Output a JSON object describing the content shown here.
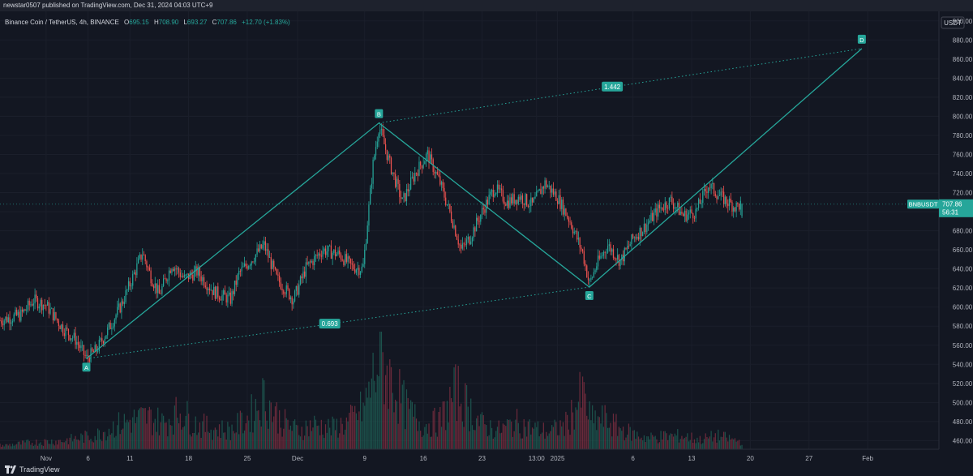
{
  "header": {
    "published": "newstar0507 published on TradingView.com, Dec 31, 2024 04:03 UTC+9"
  },
  "footer": {
    "brand": "TradingView"
  },
  "colors": {
    "background": "#131722",
    "up": "#26a69a",
    "down": "#ef5350",
    "pattern": "#26a69a",
    "axis_text": "#b2b5be",
    "grid": "#1e222d"
  },
  "chart_data": {
    "type": "candlestick",
    "symbol_line": {
      "name": "Binance Coin / TetherUS, 4h, BINANCE",
      "o_label": "O",
      "o": "695.15",
      "h_label": "H",
      "h": "708.90",
      "l_label": "L",
      "l": "693.27",
      "c_label": "C",
      "c": "707.86",
      "change": "+12.70 (+1.83%)"
    },
    "currency": "USDT",
    "y_ticks": [
      "900.00",
      "880.00",
      "860.00",
      "840.00",
      "820.00",
      "800.00",
      "780.00",
      "760.00",
      "740.00",
      "720.00",
      "700.00",
      "680.00",
      "660.00",
      "640.00",
      "620.00",
      "600.00",
      "580.00",
      "560.00",
      "540.00",
      "520.00",
      "500.00",
      "480.00",
      "460.00"
    ],
    "ylim": [
      451,
      910
    ],
    "x_ticks": [
      "Nov",
      "6",
      "11",
      "18",
      "25",
      "Dec",
      "9",
      "16",
      "23",
      "13:00",
      "2025",
      "6",
      "13",
      "20",
      "27",
      "Feb"
    ],
    "x_range_days": [
      -5.5,
      106.5
    ],
    "x_tick_days": [
      0,
      5,
      10,
      17,
      24,
      30,
      38,
      45,
      52,
      58.5,
      61,
      70,
      77,
      84,
      91,
      98
    ],
    "last_price": {
      "label": "BNBUSDT",
      "value": "707.86",
      "countdown": "56:31",
      "price": 707.86
    },
    "price_path": [
      [
        -5.5,
        586
      ],
      [
        -3,
        592
      ],
      [
        -1.5,
        607
      ],
      [
        0,
        602
      ],
      [
        2,
        578
      ],
      [
        3.5,
        566
      ],
      [
        4.8,
        546
      ],
      [
        6,
        555
      ],
      [
        7.5,
        578
      ],
      [
        9,
        603
      ],
      [
        10,
        624
      ],
      [
        11.5,
        657
      ],
      [
        12.5,
        632
      ],
      [
        13.5,
        613
      ],
      [
        15,
        645
      ],
      [
        16.5,
        630
      ],
      [
        18,
        637
      ],
      [
        20,
        616
      ],
      [
        22,
        608
      ],
      [
        23,
        635
      ],
      [
        25,
        655
      ],
      [
        26,
        665
      ],
      [
        27.5,
        630
      ],
      [
        29.5,
        608
      ],
      [
        31,
        641
      ],
      [
        33,
        660
      ],
      [
        35,
        655
      ],
      [
        36.5,
        642
      ],
      [
        37.8,
        640
      ],
      [
        39,
        750
      ],
      [
        39.7,
        790
      ],
      [
        41,
        750
      ],
      [
        42.5,
        710
      ],
      [
        44,
        740
      ],
      [
        45.5,
        760
      ],
      [
        47,
        730
      ],
      [
        48.5,
        690
      ],
      [
        49.5,
        660
      ],
      [
        50.5,
        672
      ],
      [
        52,
        700
      ],
      [
        53.5,
        725
      ],
      [
        55,
        710
      ],
      [
        56.5,
        716
      ],
      [
        58,
        707
      ],
      [
        59.5,
        730
      ],
      [
        61,
        715
      ],
      [
        62.5,
        690
      ],
      [
        64,
        657
      ],
      [
        64.8,
        624
      ],
      [
        65.7,
        645
      ],
      [
        67,
        665
      ],
      [
        68.5,
        648
      ],
      [
        70,
        672
      ],
      [
        71.5,
        685
      ],
      [
        73,
        702
      ],
      [
        74.5,
        712
      ],
      [
        76,
        696
      ],
      [
        77.5,
        700
      ],
      [
        79,
        728
      ],
      [
        80.5,
        715
      ],
      [
        82.2,
        705
      ],
      [
        83,
        707.86
      ]
    ],
    "volume_path": [
      [
        -5,
        4
      ],
      [
        -2,
        7
      ],
      [
        2,
        9
      ],
      [
        6,
        15
      ],
      [
        8,
        24
      ],
      [
        10,
        30
      ],
      [
        12,
        34
      ],
      [
        14,
        28
      ],
      [
        16,
        40
      ],
      [
        18,
        26
      ],
      [
        20,
        22
      ],
      [
        22,
        20
      ],
      [
        24,
        32
      ],
      [
        26,
        55
      ],
      [
        28,
        30
      ],
      [
        30,
        20
      ],
      [
        32,
        26
      ],
      [
        34,
        22
      ],
      [
        36,
        28
      ],
      [
        38,
        45
      ],
      [
        39.5,
        90
      ],
      [
        40,
        95
      ],
      [
        41,
        75
      ],
      [
        43,
        42
      ],
      [
        45,
        25
      ],
      [
        47,
        30
      ],
      [
        49,
        62
      ],
      [
        50,
        48
      ],
      [
        52,
        26
      ],
      [
        54,
        20
      ],
      [
        56,
        28
      ],
      [
        58,
        22
      ],
      [
        60,
        18
      ],
      [
        62,
        26
      ],
      [
        64,
        58
      ],
      [
        65,
        30
      ],
      [
        66.5,
        32
      ],
      [
        68,
        24
      ],
      [
        70,
        16
      ],
      [
        72,
        12
      ],
      [
        74,
        14
      ],
      [
        76,
        14
      ],
      [
        78,
        10
      ],
      [
        80,
        14
      ],
      [
        82,
        10
      ],
      [
        83,
        8
      ]
    ],
    "volume_max": 100,
    "harmonic": {
      "A": {
        "label": "A",
        "day": 4.8,
        "price": 546
      },
      "B": {
        "label": "B",
        "day": 39.7,
        "price": 793
      },
      "C": {
        "label": "C",
        "day": 64.8,
        "price": 621
      },
      "D": {
        "label": "D",
        "day": 97.3,
        "price": 871
      },
      "ratio_AC": "0.693",
      "ratio_BD": "1.442"
    }
  }
}
